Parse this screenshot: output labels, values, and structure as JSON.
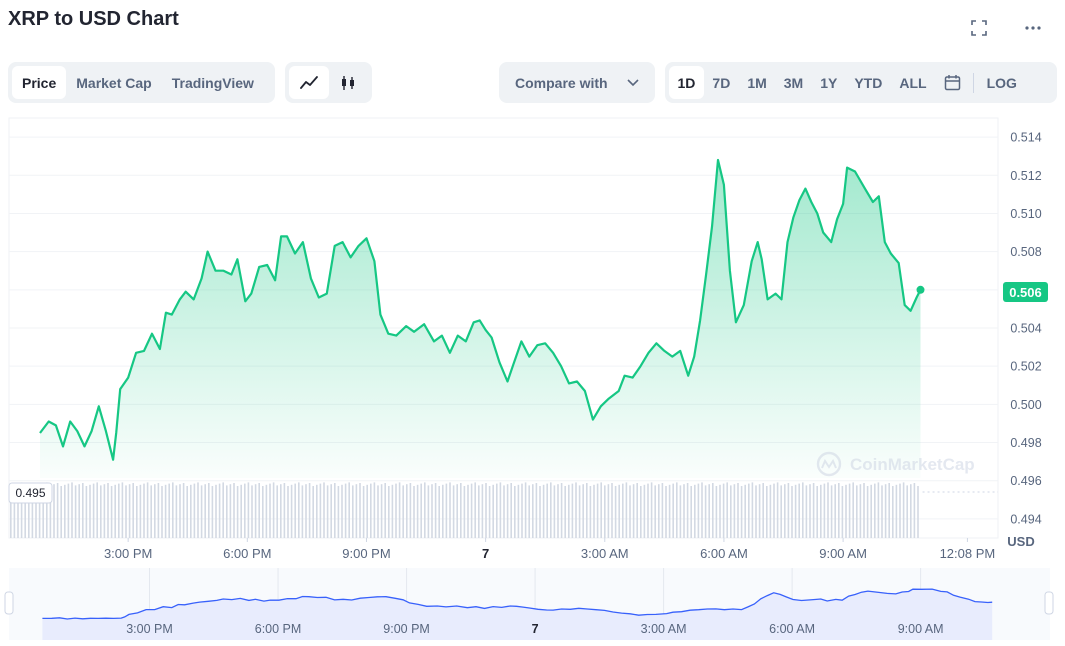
{
  "title": "XRP to USD Chart",
  "header_icons": [
    "fullscreen-icon",
    "more-icon"
  ],
  "type_tabs": [
    {
      "label": "Price",
      "active": true
    },
    {
      "label": "Market Cap",
      "active": false
    },
    {
      "label": "TradingView",
      "active": false
    }
  ],
  "compare_label": "Compare with",
  "range_tabs": [
    {
      "label": "1D",
      "active": true
    },
    {
      "label": "7D",
      "active": false
    },
    {
      "label": "1M",
      "active": false
    },
    {
      "label": "3M",
      "active": false
    },
    {
      "label": "1Y",
      "active": false
    },
    {
      "label": "YTD",
      "active": false
    },
    {
      "label": "ALL",
      "active": false
    }
  ],
  "log_label": "LOG",
  "watermark": "CoinMarketCap",
  "colors": {
    "line": "#16c784",
    "nav_line": "#3861fb",
    "nav_fill": "#e8ecfd",
    "volume": "#cfd6e4",
    "text_muted": "#58667e"
  },
  "chart_data": {
    "type": "line",
    "ylabel": "USD",
    "ylim": [
      0.493,
      0.515
    ],
    "y_ticks": [
      "0.514",
      "0.512",
      "0.510",
      "0.508",
      "0.506",
      "0.504",
      "0.502",
      "0.500",
      "0.498",
      "0.496",
      "0.494"
    ],
    "x_tick_labels": [
      "3:00 PM",
      "6:00 PM",
      "9:00 PM",
      "7",
      "3:00 AM",
      "6:00 AM",
      "9:00 AM",
      "12:08 PM"
    ],
    "x_tick_hours": [
      3,
      6,
      9,
      12,
      15,
      18,
      21,
      24.13
    ],
    "current_price": "0.506",
    "min_label": "0.495",
    "grid": true,
    "series": [
      {
        "points": [
          [
            0.78,
            0.4985
          ],
          [
            1.0,
            0.4991
          ],
          [
            1.18,
            0.4989
          ],
          [
            1.36,
            0.4978
          ],
          [
            1.54,
            0.4991
          ],
          [
            1.72,
            0.4986
          ],
          [
            1.9,
            0.4978
          ],
          [
            2.08,
            0.4986
          ],
          [
            2.26,
            0.4999
          ],
          [
            2.44,
            0.4986
          ],
          [
            2.62,
            0.4971
          ],
          [
            2.7,
            0.4985
          ],
          [
            2.8,
            0.5008
          ],
          [
            3.0,
            0.5014
          ],
          [
            3.2,
            0.5027
          ],
          [
            3.4,
            0.5028
          ],
          [
            3.6,
            0.5037
          ],
          [
            3.8,
            0.5029
          ],
          [
            3.95,
            0.5048
          ],
          [
            4.1,
            0.5047
          ],
          [
            4.3,
            0.5055
          ],
          [
            4.45,
            0.5059
          ],
          [
            4.65,
            0.5055
          ],
          [
            4.85,
            0.5066
          ],
          [
            5.0,
            0.508
          ],
          [
            5.2,
            0.507
          ],
          [
            5.4,
            0.507
          ],
          [
            5.6,
            0.5068
          ],
          [
            5.75,
            0.5076
          ],
          [
            5.95,
            0.5054
          ],
          [
            6.1,
            0.5058
          ],
          [
            6.3,
            0.5072
          ],
          [
            6.5,
            0.5073
          ],
          [
            6.7,
            0.5065
          ],
          [
            6.85,
            0.5088
          ],
          [
            7.0,
            0.5088
          ],
          [
            7.2,
            0.5079
          ],
          [
            7.4,
            0.5085
          ],
          [
            7.6,
            0.5066
          ],
          [
            7.8,
            0.5056
          ],
          [
            8.0,
            0.5058
          ],
          [
            8.2,
            0.5083
          ],
          [
            8.4,
            0.5085
          ],
          [
            8.6,
            0.5077
          ],
          [
            8.8,
            0.5083
          ],
          [
            9.0,
            0.5087
          ],
          [
            9.2,
            0.5075
          ],
          [
            9.35,
            0.5047
          ],
          [
            9.55,
            0.5037
          ],
          [
            9.75,
            0.5036
          ],
          [
            10.0,
            0.5041
          ],
          [
            10.2,
            0.5038
          ],
          [
            10.45,
            0.5042
          ],
          [
            10.7,
            0.5033
          ],
          [
            10.9,
            0.5036
          ],
          [
            11.1,
            0.5027
          ],
          [
            11.3,
            0.5036
          ],
          [
            11.5,
            0.5033
          ],
          [
            11.7,
            0.5043
          ],
          [
            11.85,
            0.5044
          ],
          [
            12.0,
            0.5039
          ],
          [
            12.15,
            0.5035
          ],
          [
            12.35,
            0.5022
          ],
          [
            12.55,
            0.5012
          ],
          [
            12.7,
            0.5021
          ],
          [
            12.9,
            0.5033
          ],
          [
            13.1,
            0.5025
          ],
          [
            13.3,
            0.5031
          ],
          [
            13.5,
            0.5032
          ],
          [
            13.7,
            0.5027
          ],
          [
            13.9,
            0.502
          ],
          [
            14.1,
            0.5011
          ],
          [
            14.3,
            0.5012
          ],
          [
            14.5,
            0.5007
          ],
          [
            14.7,
            0.4992
          ],
          [
            14.9,
            0.4999
          ],
          [
            15.1,
            0.5003
          ],
          [
            15.35,
            0.5007
          ],
          [
            15.5,
            0.5015
          ],
          [
            15.7,
            0.5014
          ],
          [
            15.9,
            0.502
          ],
          [
            16.1,
            0.5027
          ],
          [
            16.3,
            0.5032
          ],
          [
            16.5,
            0.5028
          ],
          [
            16.7,
            0.5025
          ],
          [
            16.9,
            0.5028
          ],
          [
            17.1,
            0.5015
          ],
          [
            17.25,
            0.5025
          ],
          [
            17.4,
            0.5044
          ],
          [
            17.55,
            0.5068
          ],
          [
            17.7,
            0.5093
          ],
          [
            17.85,
            0.5128
          ],
          [
            18.0,
            0.5115
          ],
          [
            18.15,
            0.507
          ],
          [
            18.3,
            0.5043
          ],
          [
            18.5,
            0.5052
          ],
          [
            18.7,
            0.5075
          ],
          [
            18.85,
            0.5085
          ],
          [
            18.95,
            0.5076
          ],
          [
            19.1,
            0.5055
          ],
          [
            19.3,
            0.5058
          ],
          [
            19.45,
            0.5055
          ],
          [
            19.6,
            0.5085
          ],
          [
            19.75,
            0.5098
          ],
          [
            19.9,
            0.5107
          ],
          [
            20.05,
            0.5113
          ],
          [
            20.2,
            0.5106
          ],
          [
            20.35,
            0.51
          ],
          [
            20.5,
            0.509
          ],
          [
            20.7,
            0.5085
          ],
          [
            20.85,
            0.5097
          ],
          [
            21.0,
            0.5105
          ],
          [
            21.1,
            0.5124
          ],
          [
            21.3,
            0.5122
          ],
          [
            21.55,
            0.5113
          ],
          [
            21.75,
            0.5106
          ],
          [
            21.9,
            0.5109
          ],
          [
            22.05,
            0.5085
          ],
          [
            22.2,
            0.5079
          ],
          [
            22.4,
            0.5074
          ],
          [
            22.55,
            0.5052
          ],
          [
            22.7,
            0.5049
          ],
          [
            22.85,
            0.5056
          ],
          [
            22.95,
            0.506
          ]
        ]
      }
    ],
    "volume_hours": [
      0.78,
      22.95
    ],
    "navigator": {
      "x_tick_labels": [
        "3:00 PM",
        "6:00 PM",
        "9:00 PM",
        "7",
        "3:00 AM",
        "6:00 AM",
        "9:00 AM"
      ]
    }
  }
}
